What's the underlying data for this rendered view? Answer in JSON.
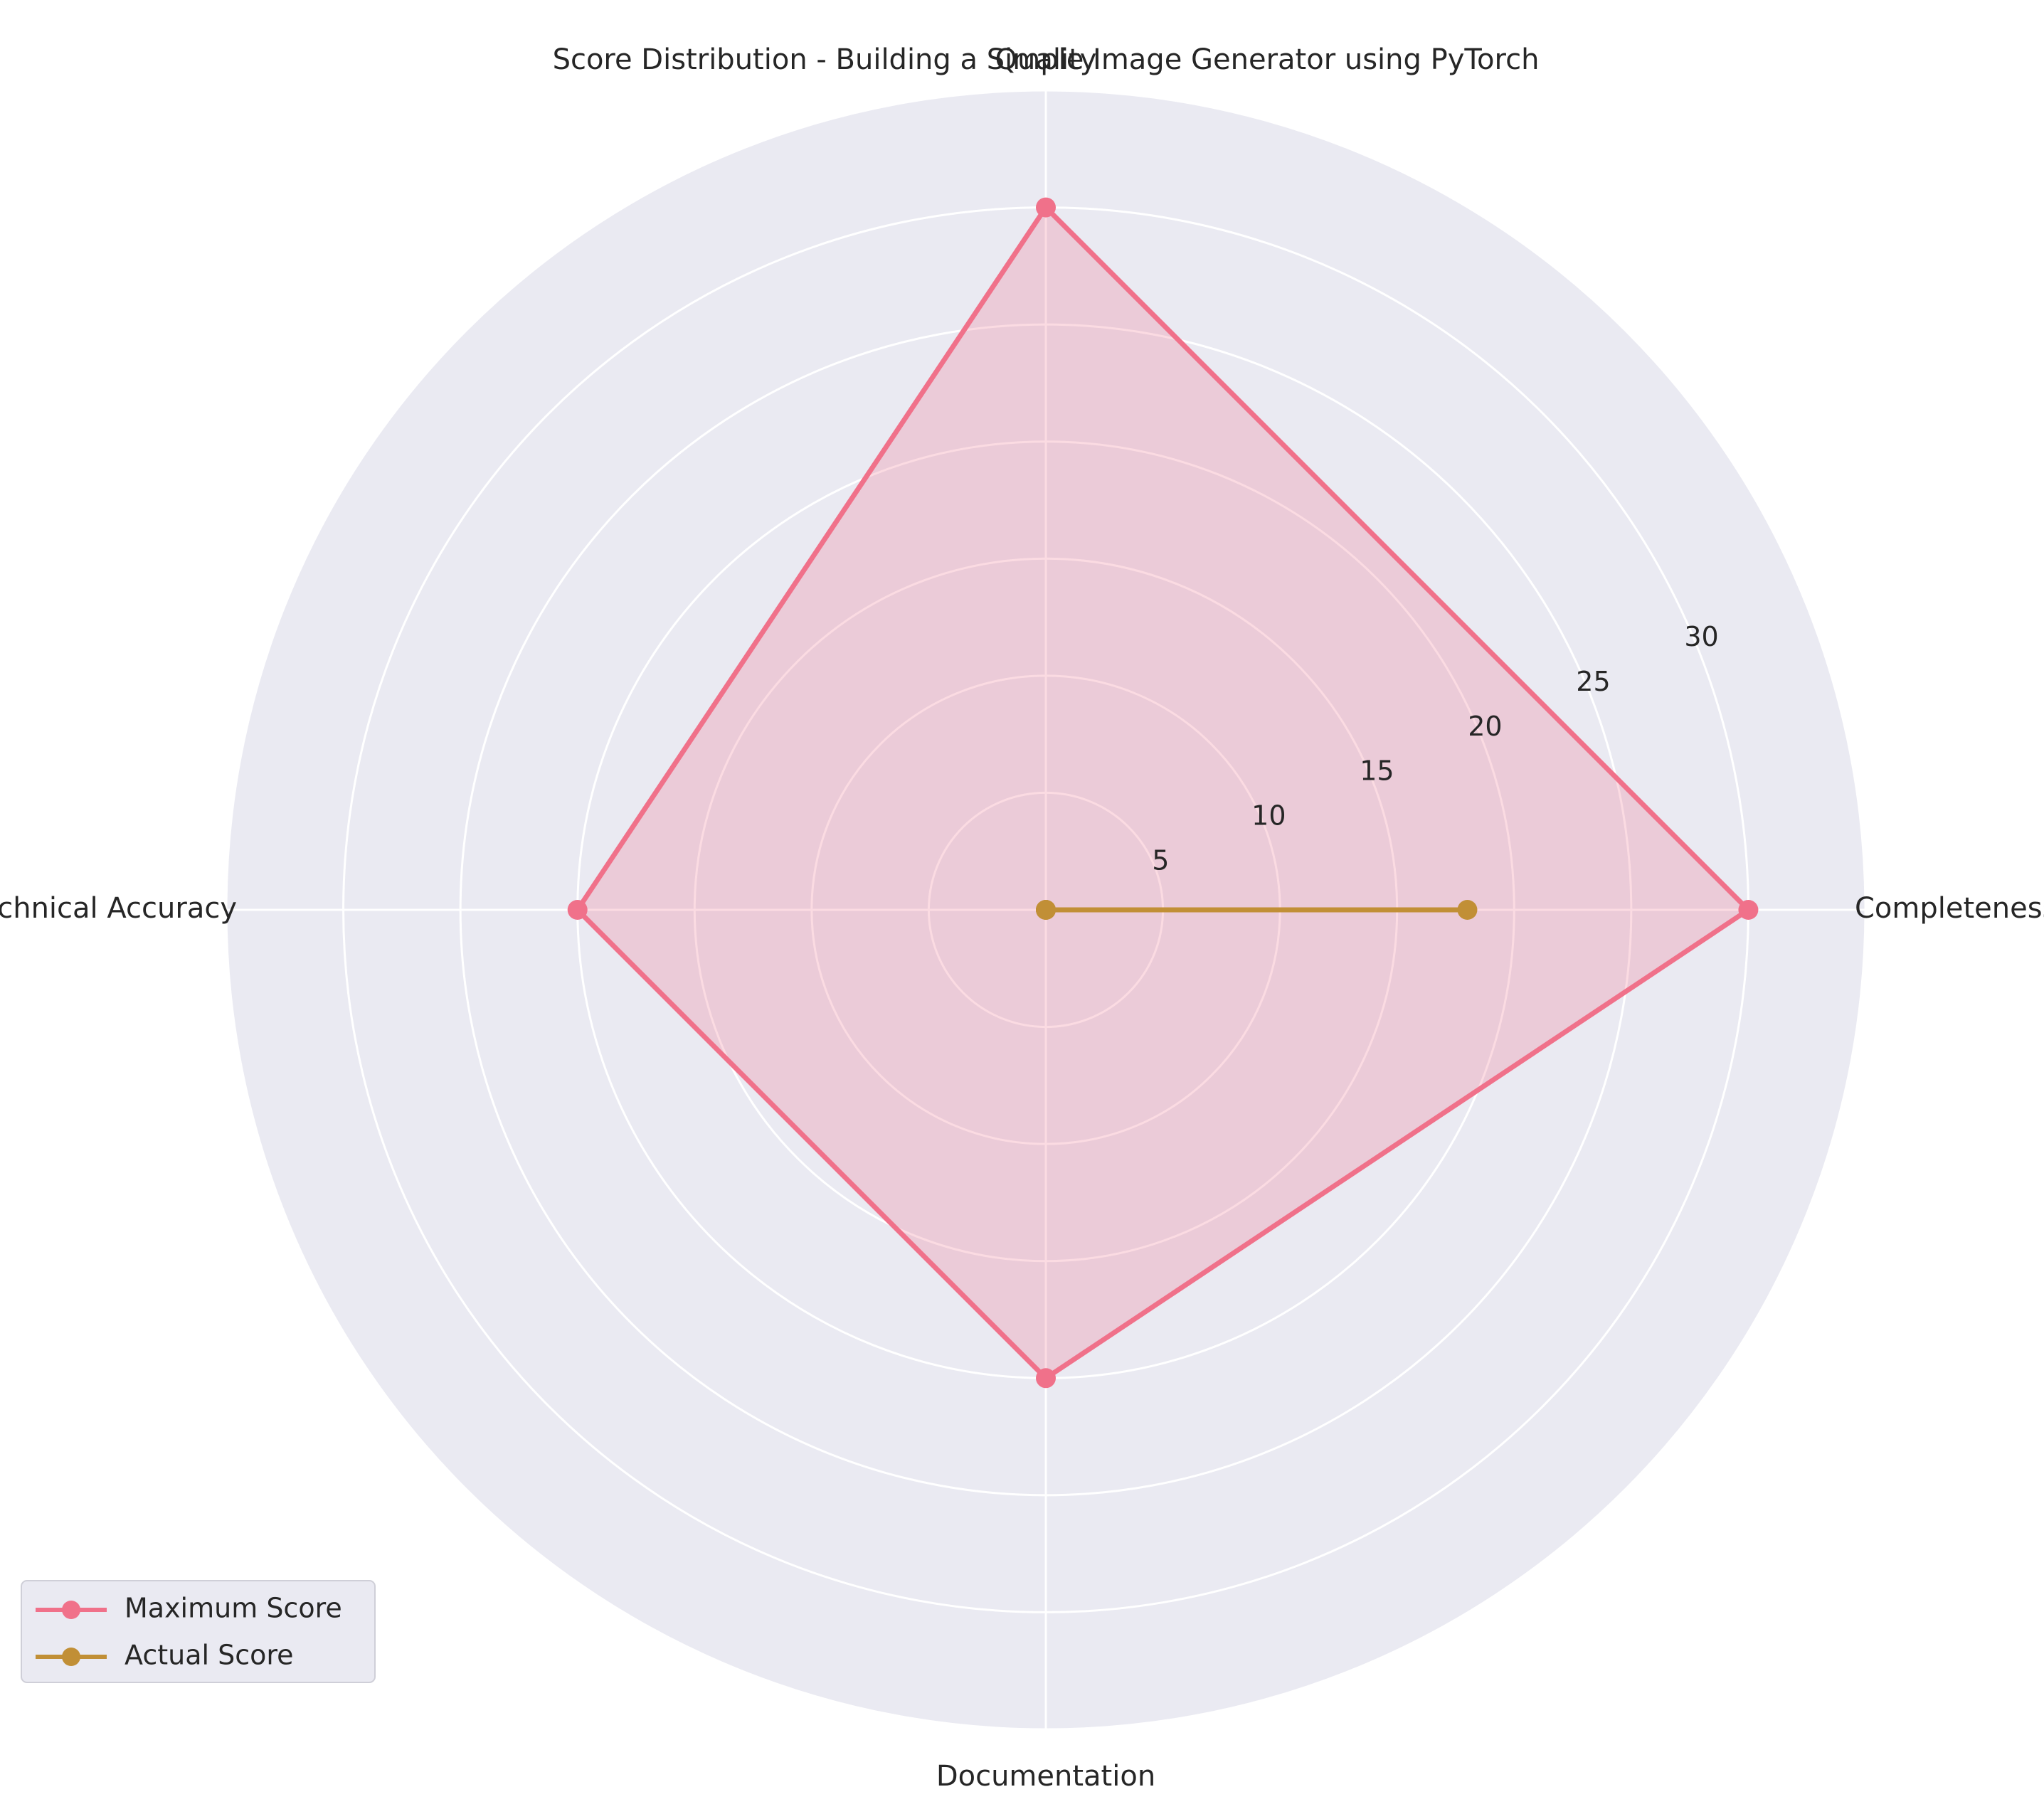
{
  "chart_data": {
    "type": "radar",
    "title": "Score Distribution - Building a Simple Image Generator using PyTorch",
    "categories": [
      "Completeness",
      "Quality",
      "Technical Accuracy",
      "Documentation"
    ],
    "series": [
      {
        "name": "Maximum Score",
        "values": [
          30,
          30,
          20,
          20
        ],
        "color": "#f0718a",
        "fill": true
      },
      {
        "name": "Actual Score",
        "values": [
          18,
          0,
          0,
          0
        ],
        "color": "#c18f36",
        "fill": false
      }
    ],
    "r_ticks": [
      "5",
      "10",
      "15",
      "20",
      "25",
      "30"
    ],
    "rlim": [
      0,
      35
    ],
    "grid": true,
    "legend": "lower-left",
    "colors": {
      "background": "#eaeaf2",
      "grid": "#ffffff"
    }
  }
}
